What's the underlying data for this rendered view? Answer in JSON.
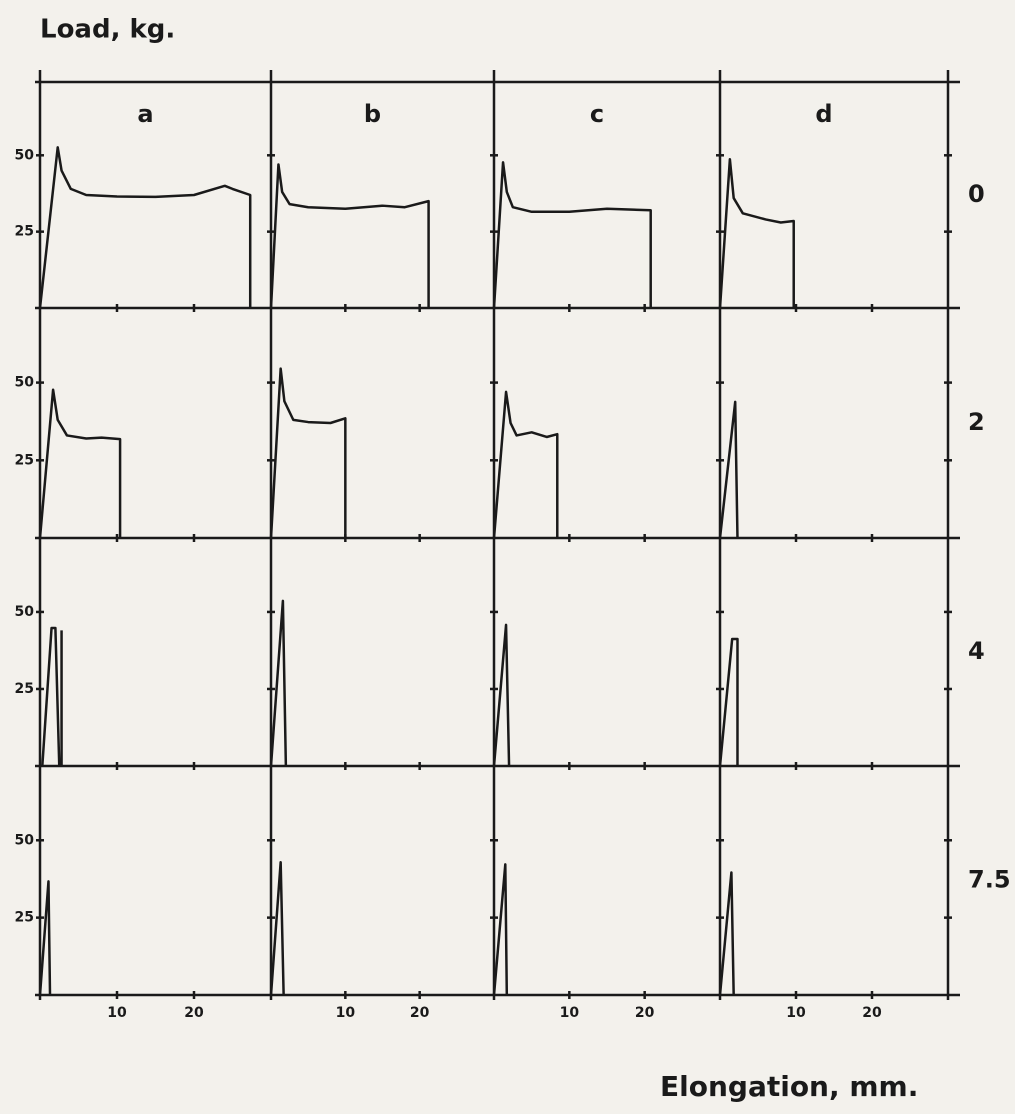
{
  "chart_data": {
    "type": "line",
    "title": "Load, kg.",
    "x_label": "Elongation, mm.",
    "columns": [
      "a",
      "b",
      "c",
      "d"
    ],
    "rows": [
      "0",
      "2",
      "4",
      "7.5"
    ],
    "xlim": [
      0,
      30
    ],
    "ylim": [
      0,
      74
    ],
    "xticks": [
      10,
      20
    ],
    "yticks": [
      25,
      50
    ],
    "color": "#1a1a1a",
    "panels": [
      [
        {
          "x": [
            0,
            2.3,
            2.8,
            4,
            6,
            10,
            15,
            20,
            24,
            25,
            27.3,
            27.3
          ],
          "values": [
            0,
            52.6,
            45,
            39,
            37,
            36.5,
            36.4,
            37,
            40,
            39,
            37,
            0
          ]
        },
        {
          "x": [
            0,
            1,
            1.5,
            2.5,
            5,
            10,
            15,
            18,
            21.2,
            21.2
          ],
          "values": [
            0,
            47,
            38,
            34,
            33,
            32.5,
            33.5,
            33,
            35,
            0
          ]
        },
        {
          "x": [
            0,
            1.2,
            1.7,
            2.5,
            5,
            10,
            15,
            20.8,
            20.8
          ],
          "values": [
            0,
            47.7,
            38,
            33,
            31.5,
            31.5,
            32.5,
            32,
            0
          ]
        },
        {
          "x": [
            0,
            1.3,
            1.8,
            3,
            6,
            8,
            9.7,
            9.7
          ],
          "values": [
            0,
            48.7,
            36,
            31,
            29,
            28,
            28.5,
            0
          ]
        }
      ],
      [
        {
          "x": [
            0,
            1.7,
            2.3,
            3.5,
            6,
            8,
            10.4,
            10.4
          ],
          "values": [
            0,
            47.7,
            38,
            33,
            32,
            32.3,
            31.8,
            0
          ]
        },
        {
          "x": [
            0,
            1.3,
            1.8,
            3,
            5,
            8,
            10,
            10
          ],
          "values": [
            0,
            54.5,
            44,
            38,
            37.3,
            37,
            38.5,
            0
          ]
        },
        {
          "x": [
            0,
            1.6,
            2.2,
            3,
            5,
            7,
            8.4,
            8.4
          ],
          "values": [
            0,
            47,
            37,
            33,
            34,
            32.5,
            33.4,
            0
          ]
        },
        {
          "x": [
            0,
            2,
            2.3
          ],
          "values": [
            0,
            43.8,
            0
          ]
        }
      ],
      [
        {
          "x": [
            0.3,
            1.5,
            2,
            2.5,
            null,
            2.8,
            2.8
          ],
          "values": [
            0,
            44.8,
            44.8,
            0,
            null,
            0,
            44
          ]
        },
        {
          "x": [
            0,
            1.6,
            2
          ],
          "values": [
            0,
            53.6,
            0
          ]
        },
        {
          "x": [
            0,
            1.6,
            2
          ],
          "values": [
            0,
            45.8,
            0
          ]
        },
        {
          "x": [
            0,
            1.6,
            2.3,
            2.3
          ],
          "values": [
            0,
            41.2,
            41.2,
            0
          ]
        }
      ],
      [
        {
          "x": [
            0,
            1.1,
            1.3
          ],
          "values": [
            0,
            36.7,
            0
          ]
        },
        {
          "x": [
            0,
            1.3,
            1.7
          ],
          "values": [
            0,
            42.9,
            0
          ]
        },
        {
          "x": [
            0,
            1.5,
            1.7
          ],
          "values": [
            0,
            42.2,
            0
          ]
        },
        {
          "x": [
            0,
            1.5,
            1.8
          ],
          "values": [
            0,
            39.6,
            0
          ]
        }
      ]
    ]
  }
}
